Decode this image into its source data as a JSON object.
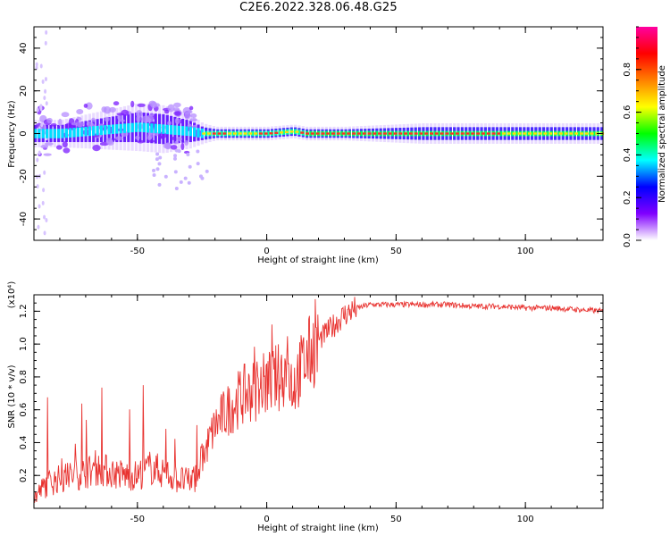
{
  "figure": {
    "title": "C2E6.2022.328.06.48.G25"
  },
  "chart_data": [
    {
      "type": "heatmap",
      "xlabel": "Height of straight line (km)",
      "ylabel": "Frequency (Hz)",
      "xlim": [
        -90,
        130
      ],
      "ylim": [
        -50,
        50
      ],
      "xticks": [
        -50,
        0,
        50,
        100
      ],
      "yticks": [
        -40,
        -20,
        0,
        20,
        40
      ],
      "grid": false,
      "colorbar": {
        "label": "Normalized spectral amplitude",
        "range": [
          0.0,
          1.0
        ],
        "ticks": [
          "0.0",
          "0.2",
          "0.4",
          "0.6",
          "0.8"
        ],
        "colors": [
          "#ffffff",
          "#8000ff",
          "#0000ff",
          "#00ffff",
          "#00ff00",
          "#ffff00",
          "#ff8000",
          "#ff0000",
          "#ff00a0"
        ]
      },
      "ridge": {
        "x": [
          -90,
          -80,
          -70,
          -60,
          -50,
          -40,
          -30,
          -25,
          -20,
          -10,
          0,
          10,
          15,
          30,
          60,
          90,
          130
        ],
        "frequency": [
          0,
          0,
          1,
          2,
          3,
          2,
          1,
          0,
          0,
          0,
          0,
          1,
          0,
          0,
          0,
          0,
          0
        ],
        "spread": [
          4,
          4,
          5,
          6,
          7,
          7,
          5,
          3,
          2,
          2,
          2,
          2,
          2,
          2,
          3,
          3,
          3
        ]
      }
    },
    {
      "type": "line",
      "xlabel": "Height of straight line (km)",
      "ylabel": "SNR (10 * v/v)",
      "y_multiplier": "(x10⁴)",
      "xlim": [
        -90,
        130
      ],
      "ylim": [
        0.0,
        1.3
      ],
      "xticks": [
        -50,
        0,
        50,
        100
      ],
      "yticks": [
        0.2,
        0.4,
        0.6,
        0.8,
        1.0,
        1.2
      ],
      "grid": false,
      "color": "#e8322f",
      "series": [
        {
          "x": [
            -90,
            -85,
            -80,
            -75,
            -70,
            -65,
            -60,
            -55,
            -50,
            -45,
            -40,
            -35,
            -30,
            -27,
            -25,
            -22,
            -20,
            -15,
            -10,
            -5,
            0,
            5,
            8,
            10,
            15,
            20,
            25,
            30,
            35,
            40,
            50,
            60,
            70,
            80,
            90,
            100,
            110,
            120,
            130
          ],
          "values": [
            0.06,
            0.15,
            0.18,
            0.2,
            0.22,
            0.24,
            0.22,
            0.2,
            0.2,
            0.25,
            0.22,
            0.18,
            0.16,
            0.2,
            0.3,
            0.42,
            0.5,
            0.6,
            0.68,
            0.72,
            0.76,
            0.8,
            0.85,
            0.75,
            0.9,
            1.02,
            1.1,
            1.18,
            1.22,
            1.24,
            1.24,
            1.24,
            1.24,
            1.23,
            1.23,
            1.22,
            1.22,
            1.21,
            1.2
          ]
        }
      ]
    }
  ]
}
